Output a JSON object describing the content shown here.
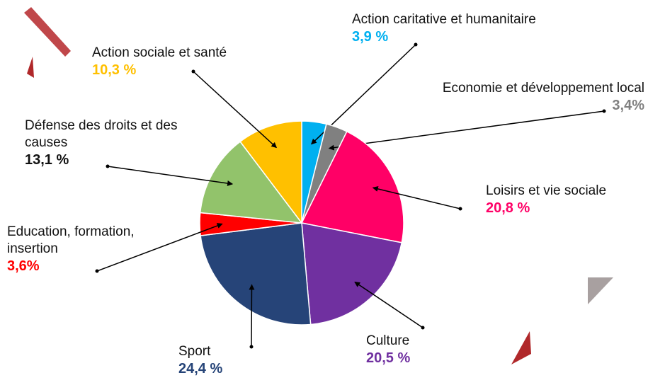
{
  "chart_data": {
    "type": "pie",
    "categories": [
      "Action caritative et humanitaire",
      "Economie et développement local",
      "Loisirs et vie sociale",
      "Culture",
      "Sport",
      "Education, formation, insertion",
      "Défense des droits et des causes",
      "Action sociale et santé"
    ],
    "values": [
      3.9,
      3.4,
      20.8,
      20.5,
      24.4,
      3.6,
      13.1,
      10.3
    ],
    "value_labels": [
      "3,9 %",
      "3,4%",
      "20,8 %",
      "20,5 %",
      "24,4 %",
      "3,6%",
      "13,1 %",
      "10,3 %"
    ],
    "colors": [
      "#00b0f0",
      "#808080",
      "#ff0066",
      "#7030a0",
      "#264478",
      "#ff0000",
      "#92c36b",
      "#ffc000"
    ],
    "value_label_colors": [
      "#00b0f0",
      "#808080",
      "#ff0066",
      "#7030a0",
      "#264478",
      "#ff0000",
      "#111111",
      "#ffc000"
    ]
  }
}
